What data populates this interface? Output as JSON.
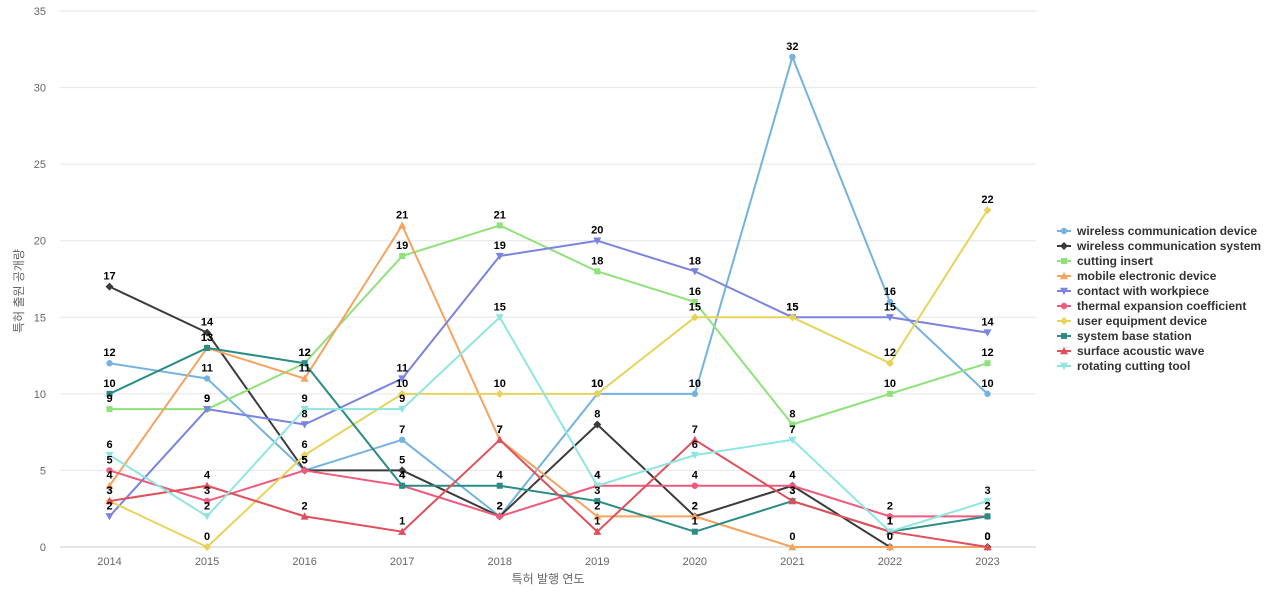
{
  "chart_data": {
    "type": "line",
    "xlabel": "특허 발행 연도",
    "ylabel": "특허 출원 공개량",
    "ylim": [
      0,
      35
    ],
    "yticks": [
      0,
      5,
      10,
      15,
      20,
      25,
      30,
      35
    ],
    "categories": [
      "2014",
      "2015",
      "2016",
      "2017",
      "2018",
      "2019",
      "2020",
      "2021",
      "2022",
      "2023"
    ],
    "grid": true,
    "legend_position": "right",
    "series": [
      {
        "name": "wireless communication device",
        "color": "#74b3e0",
        "marker": "circle",
        "values": [
          12,
          11,
          5,
          7,
          2,
          10,
          10,
          32,
          16,
          10
        ]
      },
      {
        "name": "wireless communication system",
        "color": "#3b3b3b",
        "marker": "diamond",
        "values": [
          17,
          14,
          5,
          5,
          2,
          8,
          2,
          4,
          0,
          0
        ]
      },
      {
        "name": "cutting insert",
        "color": "#8ee27a",
        "marker": "square",
        "values": [
          9,
          9,
          12,
          19,
          21,
          18,
          16,
          8,
          10,
          12
        ]
      },
      {
        "name": "mobile electronic device",
        "color": "#f4a460",
        "marker": "triangle-up",
        "values": [
          4,
          13,
          11,
          21,
          7,
          2,
          2,
          0,
          0,
          0
        ]
      },
      {
        "name": "contact with workpiece",
        "color": "#7b83e0",
        "marker": "triangle-down",
        "values": [
          2,
          9,
          8,
          11,
          19,
          20,
          18,
          15,
          15,
          14
        ]
      },
      {
        "name": "thermal expansion coefficient",
        "color": "#ef5a7d",
        "marker": "circle",
        "values": [
          5,
          3,
          5,
          4,
          2,
          4,
          4,
          4,
          2,
          2
        ]
      },
      {
        "name": "user equipment device",
        "color": "#e8d35a",
        "marker": "diamond",
        "values": [
          3,
          0,
          6,
          10,
          10,
          10,
          15,
          15,
          12,
          22
        ]
      },
      {
        "name": "system base station",
        "color": "#2a8c84",
        "marker": "square",
        "values": [
          10,
          13,
          12,
          4,
          4,
          3,
          1,
          3,
          1,
          2
        ]
      },
      {
        "name": "surface acoustic wave",
        "color": "#e04f5a",
        "marker": "triangle-up",
        "values": [
          3,
          4,
          2,
          1,
          7,
          1,
          7,
          3,
          1,
          0
        ]
      },
      {
        "name": "rotating cutting tool",
        "color": "#8fe6e0",
        "marker": "triangle-down",
        "values": [
          6,
          2,
          9,
          9,
          15,
          4,
          6,
          7,
          1,
          3
        ]
      }
    ]
  }
}
